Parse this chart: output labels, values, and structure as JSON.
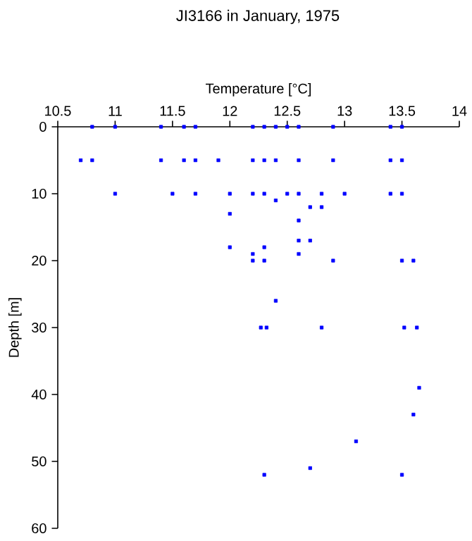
{
  "chart_data": {
    "type": "scatter",
    "title": "JI3166 in January, 1975",
    "xlabel": "Temperature [°C]",
    "ylabel": "Depth [m]",
    "x": [
      10.8,
      11.0,
      11.4,
      11.6,
      11.7,
      12.2,
      12.3,
      12.4,
      12.5,
      12.6,
      12.9,
      13.4,
      13.5,
      10.7,
      10.8,
      11.4,
      11.6,
      11.7,
      11.9,
      12.2,
      12.3,
      12.4,
      12.6,
      12.9,
      13.4,
      13.5,
      11.0,
      11.5,
      11.7,
      12.0,
      12.2,
      12.3,
      12.4,
      12.5,
      12.6,
      12.8,
      13.0,
      13.4,
      13.5,
      12.7,
      12.8,
      12.0,
      12.6,
      12.0,
      12.3,
      12.6,
      12.7,
      12.2,
      12.6,
      12.2,
      12.3,
      12.9,
      13.5,
      13.6,
      12.4,
      12.27,
      12.32,
      12.8,
      13.52,
      13.63,
      13.65,
      13.6,
      13.1,
      12.7,
      12.3,
      13.5
    ],
    "values": [
      0,
      0,
      0,
      0,
      0,
      0,
      0,
      0,
      0,
      0,
      0,
      0,
      0,
      5,
      5,
      5,
      5,
      5,
      5,
      5,
      5,
      5,
      5,
      5,
      5,
      5,
      10,
      10,
      10,
      10,
      10,
      10,
      11,
      10,
      10,
      10,
      10,
      10,
      10,
      12,
      12,
      13,
      14,
      18,
      18,
      17,
      17,
      19,
      19,
      20,
      20,
      20,
      20,
      20,
      26,
      30,
      30,
      30,
      30,
      30,
      39,
      43,
      47,
      51,
      52,
      52
    ],
    "color": "#0000ff",
    "marker": "square",
    "xlim": [
      10.5,
      14
    ],
    "ylim": [
      60,
      0
    ],
    "xticks": [
      10.5,
      11,
      11.5,
      12,
      12.5,
      13,
      13.5,
      14
    ],
    "yticks": [
      0,
      10,
      20,
      30,
      40,
      50,
      60
    ]
  }
}
